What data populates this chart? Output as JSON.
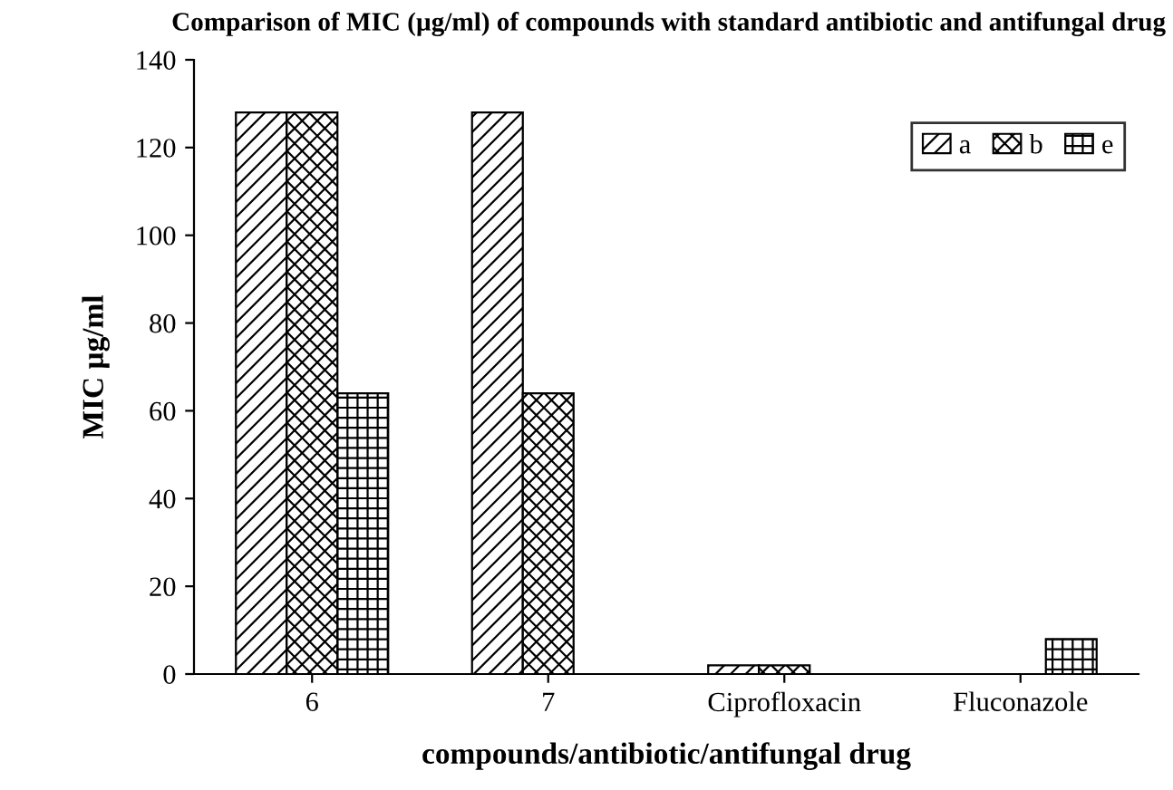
{
  "chart_data": {
    "type": "bar",
    "title": "Comparison of MIC (µg/ml) of compounds with standard antibiotic and antifungal drug",
    "xlabel": "compounds/antibiotic/antifungal drug",
    "ylabel": "MIC µg/ml",
    "categories": [
      "6",
      "7",
      "Ciprofloxacin",
      "Fluconazole"
    ],
    "series": [
      {
        "name": "a",
        "color": "#000000",
        "values": [
          128,
          128,
          2,
          null
        ]
      },
      {
        "name": "b",
        "color": "#000000",
        "values": [
          128,
          64,
          2,
          null
        ]
      },
      {
        "name": "e",
        "color": "#000000",
        "values": [
          64,
          null,
          null,
          8
        ]
      }
    ],
    "ylim": [
      0,
      140
    ],
    "yticks": [
      0,
      20,
      40,
      60,
      80,
      100,
      120,
      140
    ],
    "legend": "top right",
    "grid": false
  }
}
